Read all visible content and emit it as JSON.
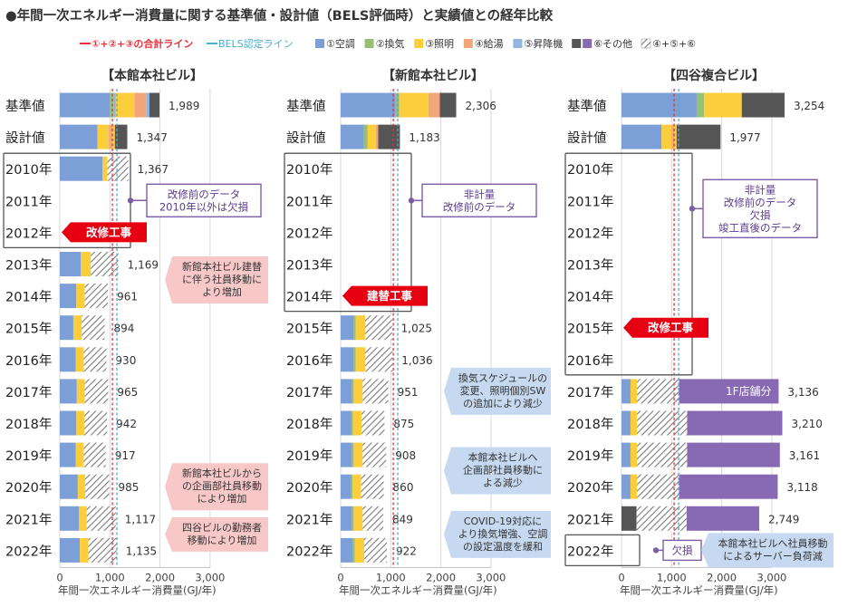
{
  "chart_data": {
    "type": "bar",
    "orientation": "horizontal",
    "stacked": true,
    "title": "●年間一次エネルギー消費量に関する基準値・設計値（BELS評価時）と実績値との経年比較",
    "legend": {
      "placement": "top",
      "lines": [
        {
          "label": "①+②+③の合計ライン",
          "color": "#e8303a"
        },
        {
          "label": "BELS認定ライン",
          "color": "#47aecd"
        }
      ],
      "items": [
        {
          "key": "aircon",
          "label": "①空調",
          "color": "#7d9fd8",
          "pattern": false
        },
        {
          "key": "vent",
          "label": "②換気",
          "color": "#95c170",
          "pattern": false
        },
        {
          "key": "light",
          "label": "③照明",
          "color": "#fcce3c",
          "pattern": false
        },
        {
          "key": "water",
          "label": "④給湯",
          "color": "#f2a77a",
          "pattern": false
        },
        {
          "key": "elev",
          "label": "⑤昇降機",
          "color": "#8fb7e2",
          "pattern": false
        },
        {
          "key": "other",
          "label": "⑥その他",
          "color": "#555555",
          "color2": "#8869b4",
          "pattern": false
        },
        {
          "key": "hatch",
          "label": "④+⑤+⑥",
          "color": "#888888",
          "pattern": true
        }
      ]
    },
    "xaxis": {
      "label": "年間一次エネルギー消費量(GJ/年)",
      "ticks": [
        0,
        1000,
        2000,
        3000
      ],
      "tick_labels": [
        "0",
        "1,000",
        "2,000",
        "3,000"
      ],
      "xlim": [
        0,
        3000
      ]
    },
    "categories": [
      "基準値",
      "設計値",
      "2010年",
      "2011年",
      "2012年",
      "2013年",
      "2014年",
      "2015年",
      "2016年",
      "2017年",
      "2018年",
      "2019年",
      "2020年",
      "2021年",
      "2022年"
    ],
    "panels": [
      {
        "title": "【本館本社ビル】",
        "red_line": 1050,
        "blue_line": 1140,
        "rows": [
          {
            "segments": [
              {
                "c": "aircon",
                "v": 1000
              },
              {
                "c": "vent",
                "v": 80
              },
              {
                "c": "elev",
                "v": 40
              },
              {
                "c": "light",
                "v": 370
              },
              {
                "c": "water",
                "v": 240
              },
              {
                "c": "elev",
                "v": 60
              },
              {
                "c": "other",
                "v": 199
              }
            ],
            "label": "1,989"
          },
          {
            "segments": [
              {
                "c": "aircon",
                "v": 750
              },
              {
                "c": "light",
                "v": 230
              },
              {
                "c": "water",
                "v": 70
              },
              {
                "c": "light",
                "v": 50
              },
              {
                "c": "other",
                "v": 247
              }
            ],
            "label": "1,347"
          },
          {
            "segments": [
              {
                "c": "aircon",
                "v": 850
              },
              {
                "c": "light",
                "v": 100
              },
              {
                "c": "hatch",
                "v": 417
              }
            ],
            "label": "1,367"
          },
          {
            "segments": [],
            "label": ""
          },
          {
            "segments": [],
            "label": ""
          },
          {
            "segments": [
              {
                "c": "aircon",
                "v": 420
              },
              {
                "c": "light",
                "v": 200
              },
              {
                "c": "hatch",
                "v": 549
              }
            ],
            "label": "1,169"
          },
          {
            "segments": [
              {
                "c": "aircon",
                "v": 330
              },
              {
                "c": "light",
                "v": 170
              },
              {
                "c": "hatch",
                "v": 461
              }
            ],
            "label": "961"
          },
          {
            "segments": [
              {
                "c": "aircon",
                "v": 270
              },
              {
                "c": "light",
                "v": 170
              },
              {
                "c": "hatch",
                "v": 454
              }
            ],
            "label": "894"
          },
          {
            "segments": [
              {
                "c": "aircon",
                "v": 320
              },
              {
                "c": "light",
                "v": 160
              },
              {
                "c": "hatch",
                "v": 450
              }
            ],
            "label": "930"
          },
          {
            "segments": [
              {
                "c": "aircon",
                "v": 340
              },
              {
                "c": "light",
                "v": 160
              },
              {
                "c": "hatch",
                "v": 465
              }
            ],
            "label": "965"
          },
          {
            "segments": [
              {
                "c": "aircon",
                "v": 330
              },
              {
                "c": "light",
                "v": 160
              },
              {
                "c": "hatch",
                "v": 452
              }
            ],
            "label": "942"
          },
          {
            "segments": [
              {
                "c": "aircon",
                "v": 320
              },
              {
                "c": "light",
                "v": 160
              },
              {
                "c": "hatch",
                "v": 437
              }
            ],
            "label": "917"
          },
          {
            "segments": [
              {
                "c": "aircon",
                "v": 360
              },
              {
                "c": "light",
                "v": 150
              },
              {
                "c": "hatch",
                "v": 475
              }
            ],
            "label": "985"
          },
          {
            "segments": [
              {
                "c": "aircon",
                "v": 380
              },
              {
                "c": "light",
                "v": 160
              },
              {
                "c": "hatch",
                "v": 577
              }
            ],
            "label": "1,117"
          },
          {
            "segments": [
              {
                "c": "aircon",
                "v": 400
              },
              {
                "c": "light",
                "v": 170
              },
              {
                "c": "hatch",
                "v": 565
              }
            ],
            "label": "1,135"
          }
        ],
        "boxes": [
          {
            "from": 2,
            "to": 4
          }
        ],
        "callouts": [
          {
            "row": 3,
            "kind": "purple",
            "lines": [
              "改修前のデータ",
              "2010年以外は欠損"
            ]
          },
          {
            "row": 4,
            "kind": "red",
            "lines": [
              "改修工事"
            ]
          },
          {
            "row": 5.5,
            "kind": "pink",
            "lines": [
              "新館本社ビル建替",
              "に伴う社員移動に",
              "より増加"
            ]
          },
          {
            "row": 12,
            "kind": "pink",
            "lines": [
              "新館本社ビルから",
              "の企画部社員移動",
              "により増加"
            ]
          },
          {
            "row": 13.5,
            "kind": "pink",
            "lines": [
              "四谷ビルの勤務者",
              "移動により増加"
            ]
          }
        ]
      },
      {
        "title": "【新館本社ビル】",
        "red_line": 1050,
        "blue_line": 1140,
        "rows": [
          {
            "segments": [
              {
                "c": "aircon",
                "v": 1100
              },
              {
                "c": "vent",
                "v": 70
              },
              {
                "c": "light",
                "v": 580
              },
              {
                "c": "water",
                "v": 230
              },
              {
                "c": "other",
                "v": 326
              }
            ],
            "label": "2,306"
          },
          {
            "segments": [
              {
                "c": "aircon",
                "v": 460
              },
              {
                "c": "vent",
                "v": 80
              },
              {
                "c": "light",
                "v": 160
              },
              {
                "c": "water",
                "v": 50
              },
              {
                "c": "other",
                "v": 433
              }
            ],
            "label": "1,183"
          },
          {
            "segments": [],
            "label": ""
          },
          {
            "segments": [],
            "label": ""
          },
          {
            "segments": [],
            "label": ""
          },
          {
            "segments": [],
            "label": ""
          },
          {
            "segments": [],
            "label": ""
          },
          {
            "segments": [
              {
                "c": "aircon",
                "v": 260
              },
              {
                "c": "vent",
                "v": 40
              },
              {
                "c": "light",
                "v": 190
              },
              {
                "c": "hatch",
                "v": 535
              }
            ],
            "label": "1,025"
          },
          {
            "segments": [
              {
                "c": "aircon",
                "v": 260
              },
              {
                "c": "vent",
                "v": 40
              },
              {
                "c": "light",
                "v": 190
              },
              {
                "c": "hatch",
                "v": 546
              }
            ],
            "label": "1,036"
          },
          {
            "segments": [
              {
                "c": "aircon",
                "v": 230
              },
              {
                "c": "vent",
                "v": 30
              },
              {
                "c": "light",
                "v": 180
              },
              {
                "c": "hatch",
                "v": 511
              }
            ],
            "label": "951"
          },
          {
            "segments": [
              {
                "c": "aircon",
                "v": 220
              },
              {
                "c": "vent",
                "v": 30
              },
              {
                "c": "light",
                "v": 170
              },
              {
                "c": "hatch",
                "v": 455
              }
            ],
            "label": "875"
          },
          {
            "segments": [
              {
                "c": "aircon",
                "v": 230
              },
              {
                "c": "vent",
                "v": 30
              },
              {
                "c": "light",
                "v": 180
              },
              {
                "c": "hatch",
                "v": 468
              }
            ],
            "label": "908"
          },
          {
            "segments": [
              {
                "c": "aircon",
                "v": 210
              },
              {
                "c": "vent",
                "v": 30
              },
              {
                "c": "light",
                "v": 170
              },
              {
                "c": "hatch",
                "v": 450
              }
            ],
            "label": "860"
          },
          {
            "segments": [
              {
                "c": "aircon",
                "v": 230
              },
              {
                "c": "vent",
                "v": 30
              },
              {
                "c": "light",
                "v": 180
              },
              {
                "c": "hatch",
                "v": 409
              }
            ],
            "label": "849"
          },
          {
            "segments": [
              {
                "c": "aircon",
                "v": 250
              },
              {
                "c": "vent",
                "v": 30
              },
              {
                "c": "light",
                "v": 190
              },
              {
                "c": "hatch",
                "v": 452
              }
            ],
            "label": "922"
          }
        ],
        "boxes": [
          {
            "from": 2,
            "to": 6
          }
        ],
        "callouts": [
          {
            "row": 3,
            "kind": "purple",
            "lines": [
              "非計量",
              "改修前のデータ"
            ]
          },
          {
            "row": 6,
            "kind": "red",
            "lines": [
              "建替工事"
            ]
          },
          {
            "row": 9,
            "kind": "blue",
            "lines": [
              "換気スケジュールの",
              "変更、照明個別SW",
              "の追加により減少"
            ]
          },
          {
            "row": 11.5,
            "kind": "blue",
            "lines": [
              "本館本社ビルへ",
              "企画部社員移動に",
              "よる減少"
            ]
          },
          {
            "row": 13.5,
            "kind": "blue",
            "lines": [
              "COVID-19対応に",
              "より換気増強、空調",
              "の設定温度を緩和"
            ]
          }
        ]
      },
      {
        "title": "【四谷複合ビル】",
        "red_line": 1050,
        "blue_line": 1140,
        "rows": [
          {
            "segments": [
              {
                "c": "aircon",
                "v": 1500
              },
              {
                "c": "vent",
                "v": 150
              },
              {
                "c": "light",
                "v": 750
              },
              {
                "c": "other",
                "v": 854
              }
            ],
            "label": "3,254"
          },
          {
            "segments": [
              {
                "c": "aircon",
                "v": 800
              },
              {
                "c": "light",
                "v": 200
              },
              {
                "c": "water",
                "v": 50
              },
              {
                "c": "light",
                "v": 50
              },
              {
                "c": "other",
                "v": 877
              }
            ],
            "label": "1,977"
          },
          {
            "segments": [],
            "label": ""
          },
          {
            "segments": [],
            "label": ""
          },
          {
            "segments": [],
            "label": ""
          },
          {
            "segments": [],
            "label": ""
          },
          {
            "segments": [],
            "label": ""
          },
          {
            "segments": [],
            "label": ""
          },
          {
            "segments": [],
            "label": ""
          },
          {
            "segments": [
              {
                "c": "aircon",
                "v": 180
              },
              {
                "c": "light",
                "v": 130
              },
              {
                "c": "hatch",
                "v": 840
              },
              {
                "c": "other2",
                "v": 1986
              }
            ],
            "label": "3,136",
            "inner_label": "1F店舗分"
          },
          {
            "segments": [
              {
                "c": "aircon",
                "v": 180
              },
              {
                "c": "light",
                "v": 130
              },
              {
                "c": "hatch",
                "v": 1000
              },
              {
                "c": "other2",
                "v": 1900
              }
            ],
            "label": "3,210"
          },
          {
            "segments": [
              {
                "c": "aircon",
                "v": 180
              },
              {
                "c": "light",
                "v": 130
              },
              {
                "c": "hatch",
                "v": 1000
              },
              {
                "c": "other2",
                "v": 1851
              }
            ],
            "label": "3,161"
          },
          {
            "segments": [
              {
                "c": "aircon",
                "v": 180
              },
              {
                "c": "light",
                "v": 130
              },
              {
                "c": "hatch",
                "v": 840
              },
              {
                "c": "other2",
                "v": 1968
              }
            ],
            "label": "3,118"
          },
          {
            "segments": [
              {
                "c": "other",
                "v": 300
              },
              {
                "c": "hatch",
                "v": 1000
              },
              {
                "c": "other2",
                "v": 1449
              }
            ],
            "label": "2,749"
          },
          {
            "segments": [],
            "label": ""
          }
        ],
        "boxes": [
          {
            "from": 2,
            "to": 8
          },
          {
            "from": 14,
            "to": 14
          }
        ],
        "callouts": [
          {
            "row": 3,
            "kind": "purple",
            "lines": [
              "非計量",
              "改修前のデータ",
              "欠損",
              "竣工直後のデータ"
            ]
          },
          {
            "row": 7,
            "kind": "red",
            "lines": [
              "改修工事"
            ]
          },
          {
            "row": 14,
            "kind": "purple-small",
            "lines": [
              "欠損"
            ]
          },
          {
            "row": 14,
            "kind": "blue",
            "lines": [
              "本館本社ビルへ社員移動",
              "によるサーバー負荷減"
            ]
          }
        ]
      }
    ]
  }
}
